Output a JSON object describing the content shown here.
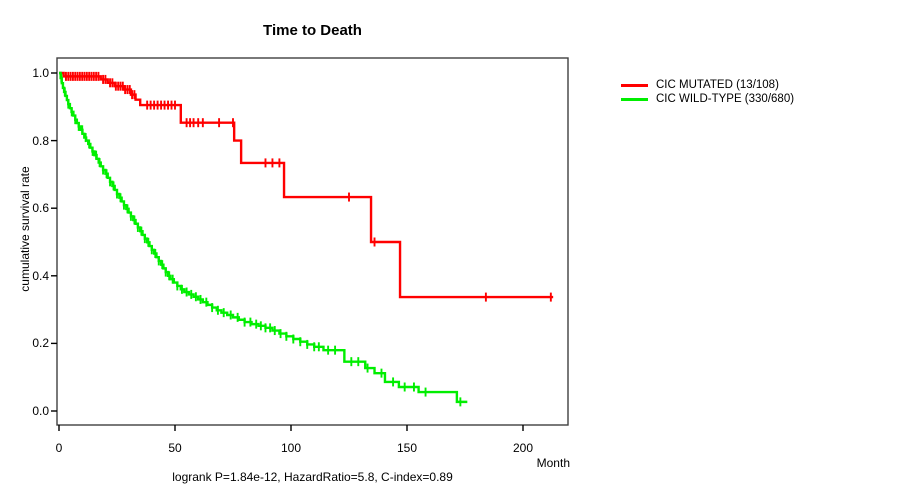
{
  "chart_data": {
    "type": "line",
    "subtype": "kaplan-meier-step-survival",
    "title": "Time to Death",
    "xlabel": "Month",
    "ylabel": "cumulative survival rate",
    "xlim": [
      0,
      220
    ],
    "ylim": [
      0,
      1.0
    ],
    "x_ticks": [
      0,
      50,
      100,
      150,
      200
    ],
    "y_ticks": [
      0.0,
      0.2,
      0.4,
      0.6,
      0.8,
      1.0
    ],
    "grid": false,
    "legend_position": "right-outside",
    "annotation": "logrank P=1.84e-12, HazardRatio=5.8, C-index=0.89",
    "axis_color": "#404040",
    "series": [
      {
        "name": "CIC MUTATED (13/108)",
        "color": "#ff0000",
        "end_month": 213,
        "steps": [
          [
            0,
            1.0
          ],
          [
            2,
            0.99
          ],
          [
            18,
            0.981
          ],
          [
            21,
            0.971
          ],
          [
            24,
            0.961
          ],
          [
            28,
            0.951
          ],
          [
            31,
            0.936
          ],
          [
            33,
            0.921
          ],
          [
            35,
            0.905
          ],
          [
            52.5,
            0.853
          ],
          [
            75.5,
            0.8
          ],
          [
            78.5,
            0.734
          ],
          [
            97,
            0.633
          ],
          [
            134.5,
            0.5
          ],
          [
            147,
            0.337
          ]
        ],
        "censor_months": [
          3,
          4,
          5,
          6,
          7,
          8,
          9,
          10,
          11,
          12,
          13,
          14,
          15,
          16,
          17,
          19,
          20,
          22,
          23,
          24.5,
          25.5,
          26.5,
          27.5,
          28.5,
          29.5,
          30.5,
          31.5,
          32.5,
          38,
          39.5,
          41,
          42.5,
          44,
          45.5,
          47,
          48.5,
          50,
          55,
          56.5,
          58,
          60,
          62,
          69,
          75,
          89,
          92,
          95,
          125,
          136,
          184,
          212
        ]
      },
      {
        "name": "CIC WILD-TYPE (330/680)",
        "color": "#00ee00",
        "end_month": 176,
        "steps": [
          [
            0,
            1.0
          ],
          [
            0.7,
            0.985
          ],
          [
            1.2,
            0.97
          ],
          [
            1.7,
            0.956
          ],
          [
            2.2,
            0.944
          ],
          [
            2.8,
            0.932
          ],
          [
            3.4,
            0.92
          ],
          [
            4.0,
            0.908
          ],
          [
            4.7,
            0.896
          ],
          [
            5.4,
            0.885
          ],
          [
            6.2,
            0.874
          ],
          [
            7.0,
            0.862
          ],
          [
            7.7,
            0.852
          ],
          [
            8.5,
            0.842
          ],
          [
            9.3,
            0.832
          ],
          [
            10.1,
            0.82
          ],
          [
            10.9,
            0.809
          ],
          [
            11.7,
            0.8
          ],
          [
            12.6,
            0.79
          ],
          [
            13.5,
            0.779
          ],
          [
            14.4,
            0.768
          ],
          [
            15.3,
            0.757
          ],
          [
            16.2,
            0.746
          ],
          [
            17.1,
            0.735
          ],
          [
            18.0,
            0.724
          ],
          [
            19.0,
            0.713
          ],
          [
            20.0,
            0.702
          ],
          [
            21.0,
            0.69
          ],
          [
            22.0,
            0.678
          ],
          [
            23.0,
            0.666
          ],
          [
            24.0,
            0.654
          ],
          [
            25.0,
            0.642
          ],
          [
            26.0,
            0.631
          ],
          [
            27.0,
            0.62
          ],
          [
            28.0,
            0.609
          ],
          [
            29.0,
            0.598
          ],
          [
            30.0,
            0.587
          ],
          [
            31.0,
            0.576
          ],
          [
            32.0,
            0.565
          ],
          [
            33.0,
            0.554
          ],
          [
            34.0,
            0.543
          ],
          [
            35.0,
            0.532
          ],
          [
            36.0,
            0.521
          ],
          [
            37.0,
            0.51
          ],
          [
            38.0,
            0.499
          ],
          [
            39.0,
            0.488
          ],
          [
            40.0,
            0.477
          ],
          [
            41.0,
            0.466
          ],
          [
            42.0,
            0.455
          ],
          [
            43.0,
            0.444
          ],
          [
            44.0,
            0.433
          ],
          [
            45.0,
            0.422
          ],
          [
            46.0,
            0.411
          ],
          [
            47.0,
            0.4
          ],
          [
            48.0,
            0.39
          ],
          [
            49.5,
            0.38
          ],
          [
            51.0,
            0.37
          ],
          [
            52.5,
            0.36
          ],
          [
            54.0,
            0.352
          ],
          [
            56.0,
            0.345
          ],
          [
            58.0,
            0.338
          ],
          [
            60.0,
            0.33
          ],
          [
            62.0,
            0.322
          ],
          [
            64.0,
            0.314
          ],
          [
            66.0,
            0.306
          ],
          [
            68.0,
            0.298
          ],
          [
            70.0,
            0.291
          ],
          [
            72.5,
            0.284
          ],
          [
            75.0,
            0.277
          ],
          [
            77.5,
            0.27
          ],
          [
            80.0,
            0.263
          ],
          [
            83.0,
            0.257
          ],
          [
            86.0,
            0.252
          ],
          [
            89.0,
            0.246
          ],
          [
            92.0,
            0.238
          ],
          [
            95.0,
            0.229
          ],
          [
            98.0,
            0.221
          ],
          [
            101.0,
            0.213
          ],
          [
            104.0,
            0.205
          ],
          [
            107.0,
            0.197
          ],
          [
            110.0,
            0.19
          ],
          [
            114.0,
            0.18
          ],
          [
            123.0,
            0.146
          ],
          [
            132.0,
            0.127
          ],
          [
            136.0,
            0.112
          ],
          [
            140.5,
            0.086
          ],
          [
            146.5,
            0.071
          ],
          [
            155.0,
            0.056
          ],
          [
            171.5,
            0.027
          ]
        ],
        "censor_months": [
          1,
          2.5,
          4,
          5.5,
          7,
          8.5,
          10,
          11.5,
          13,
          14.5,
          16,
          17.5,
          19,
          20.5,
          22,
          23.5,
          25,
          26.5,
          28,
          29.5,
          31,
          32.5,
          34,
          35.5,
          37,
          38.5,
          40,
          41.5,
          43,
          44.5,
          46,
          47.5,
          49,
          51,
          53,
          55,
          57,
          59,
          61,
          63.5,
          66,
          68.5,
          71,
          74,
          77,
          80,
          82.5,
          85,
          87,
          89,
          91,
          93,
          95.5,
          98,
          101,
          104,
          107,
          110,
          112,
          116,
          119,
          126,
          129,
          133,
          139,
          144,
          149,
          153,
          158,
          173
        ]
      }
    ]
  }
}
